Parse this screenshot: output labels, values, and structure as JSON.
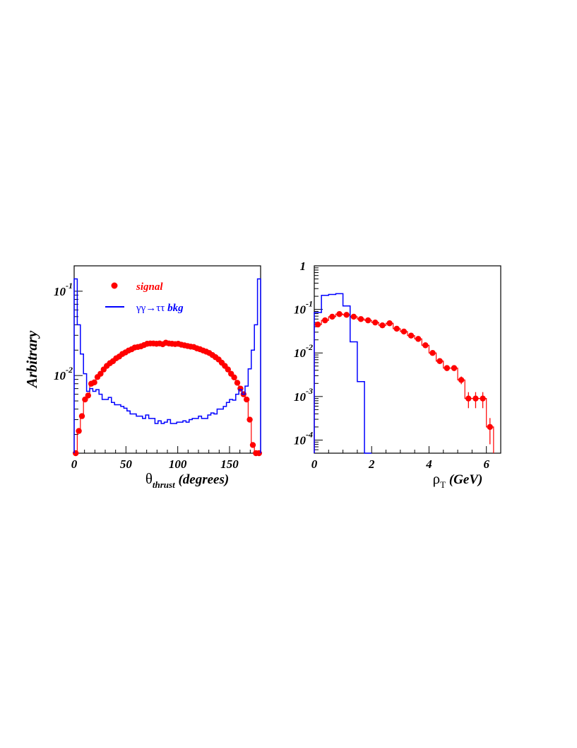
{
  "chart_data": [
    {
      "type": "histogram",
      "ylabel": "Arbitrary",
      "xlabel": {
        "main": "θ",
        "sub": "thrust",
        "suffix": "(degrees)"
      },
      "xlim": [
        0,
        180
      ],
      "ylim": [
        0.0012,
        0.2
      ],
      "yscale": "log",
      "xticks": [
        "0",
        "50",
        "100",
        "150"
      ],
      "xtick_values": [
        0,
        50,
        100,
        150
      ],
      "yticks": [
        {
          "base": "10",
          "exp": "-1",
          "value": 0.1
        },
        {
          "base": "10",
          "exp": "-2",
          "value": 0.01
        }
      ],
      "legend": {
        "position": "top-left",
        "signal": "signal",
        "bkg_prefix": "γγ→ττ",
        "bkg_suffix": "bkg"
      },
      "series": [
        {
          "name": "signal",
          "color": "#ff0000",
          "style": "markers+step",
          "x": [
            1.5,
            4.5,
            7.5,
            10.5,
            13.5,
            16.5,
            19.5,
            22.5,
            25.5,
            28.5,
            31.5,
            34.5,
            37.5,
            40.5,
            43.5,
            46.5,
            49.5,
            52.5,
            55.5,
            58.5,
            61.5,
            64.5,
            67.5,
            70.5,
            73.5,
            76.5,
            79.5,
            82.5,
            85.5,
            88.5,
            91.5,
            94.5,
            97.5,
            100.5,
            103.5,
            106.5,
            109.5,
            112.5,
            115.5,
            118.5,
            121.5,
            124.5,
            127.5,
            130.5,
            133.5,
            136.5,
            139.5,
            142.5,
            145.5,
            148.5,
            151.5,
            154.5,
            157.5,
            160.5,
            163.5,
            166.5,
            169.5,
            172.5,
            175.5,
            178.5
          ],
          "values": [
            0.0012,
            0.0022,
            0.0033,
            0.0052,
            0.0058,
            0.008,
            0.0083,
            0.0096,
            0.0105,
            0.0118,
            0.013,
            0.014,
            0.0148,
            0.016,
            0.0168,
            0.018,
            0.0188,
            0.0198,
            0.0205,
            0.0215,
            0.0218,
            0.0222,
            0.023,
            0.0238,
            0.024,
            0.024,
            0.0238,
            0.024,
            0.0235,
            0.0245,
            0.024,
            0.0238,
            0.0236,
            0.0238,
            0.0232,
            0.0228,
            0.0224,
            0.022,
            0.0218,
            0.021,
            0.0205,
            0.0198,
            0.0192,
            0.0185,
            0.0175,
            0.0165,
            0.0155,
            0.0142,
            0.013,
            0.0118,
            0.0105,
            0.0095,
            0.0082,
            0.007,
            0.006,
            0.0052,
            0.003,
            0.0015,
            0.0012,
            0.0012
          ]
        },
        {
          "name": "γγ→ττ bkg",
          "color": "#0000ff",
          "style": "step",
          "edges": [
            0,
            3,
            6,
            9,
            12,
            15,
            18,
            21,
            24,
            27,
            30,
            33,
            36,
            39,
            42,
            45,
            48,
            51,
            54,
            57,
            60,
            63,
            66,
            69,
            72,
            75,
            78,
            81,
            84,
            87,
            90,
            93,
            96,
            99,
            102,
            105,
            108,
            111,
            114,
            117,
            120,
            123,
            126,
            129,
            132,
            135,
            138,
            141,
            144,
            147,
            150,
            153,
            156,
            159,
            162,
            165,
            168,
            171,
            174,
            177,
            180
          ],
          "values": [
            0.14,
            0.04,
            0.018,
            0.0105,
            0.0065,
            0.007,
            0.0065,
            0.0068,
            0.006,
            0.0052,
            0.0052,
            0.0055,
            0.0048,
            0.0045,
            0.0045,
            0.0043,
            0.0041,
            0.0038,
            0.0035,
            0.0035,
            0.0033,
            0.0033,
            0.0031,
            0.0034,
            0.0031,
            0.0031,
            0.0027,
            0.0029,
            0.0027,
            0.0028,
            0.003,
            0.0027,
            0.0027,
            0.0028,
            0.0028,
            0.0029,
            0.0028,
            0.003,
            0.0031,
            0.0031,
            0.0033,
            0.0031,
            0.0031,
            0.0034,
            0.0036,
            0.0035,
            0.004,
            0.004,
            0.0043,
            0.0048,
            0.0052,
            0.0051,
            0.006,
            0.0068,
            0.006,
            0.0075,
            0.012,
            0.02,
            0.04,
            0.14
          ]
        }
      ]
    },
    {
      "type": "histogram",
      "ylabel": "",
      "xlabel": {
        "main": "ρ",
        "sub": "T",
        "suffix": "(GeV)"
      },
      "xlim": [
        0,
        6.5
      ],
      "ylim": [
        5e-05,
        1
      ],
      "yscale": "log",
      "xticks": [
        "0",
        "2",
        "4",
        "6"
      ],
      "xtick_values": [
        0,
        2,
        4,
        6
      ],
      "yticks": [
        {
          "base": "1",
          "exp": "",
          "value": 1
        },
        {
          "base": "10",
          "exp": "-1",
          "value": 0.1
        },
        {
          "base": "10",
          "exp": "-2",
          "value": 0.01
        },
        {
          "base": "10",
          "exp": "-3",
          "value": 0.001
        },
        {
          "base": "10",
          "exp": "-4",
          "value": 0.0001
        }
      ],
      "series": [
        {
          "name": "signal",
          "color": "#ff0000",
          "style": "markers+step",
          "x": [
            0.125,
            0.375,
            0.625,
            0.875,
            1.125,
            1.375,
            1.625,
            1.875,
            2.125,
            2.375,
            2.625,
            2.875,
            3.125,
            3.375,
            3.625,
            3.875,
            4.125,
            4.375,
            4.625,
            4.875,
            5.125,
            5.375,
            5.625,
            5.875,
            6.125
          ],
          "values": [
            0.045,
            0.056,
            0.068,
            0.078,
            0.075,
            0.068,
            0.06,
            0.056,
            0.05,
            0.043,
            0.048,
            0.036,
            0.031,
            0.025,
            0.021,
            0.015,
            0.01,
            0.0065,
            0.0045,
            0.0045,
            0.0024,
            0.0009,
            0.0009,
            0.0009,
            0.0002
          ],
          "errors_rel": [
            0.03,
            0.03,
            0.03,
            0.03,
            0.03,
            0.03,
            0.03,
            0.03,
            0.03,
            0.03,
            0.03,
            0.04,
            0.05,
            0.05,
            0.06,
            0.08,
            0.1,
            0.12,
            0.15,
            0.15,
            0.2,
            0.4,
            0.4,
            0.4,
            0.6
          ]
        },
        {
          "name": "γγ→ττ bkg",
          "color": "#0000ff",
          "style": "step",
          "edges": [
            0,
            0.25,
            0.5,
            0.75,
            1.0,
            1.25,
            1.5,
            1.75,
            2.0
          ],
          "values": [
            0.085,
            0.21,
            0.22,
            0.23,
            0.12,
            0.018,
            0.0022,
            5e-05
          ]
        }
      ]
    }
  ]
}
